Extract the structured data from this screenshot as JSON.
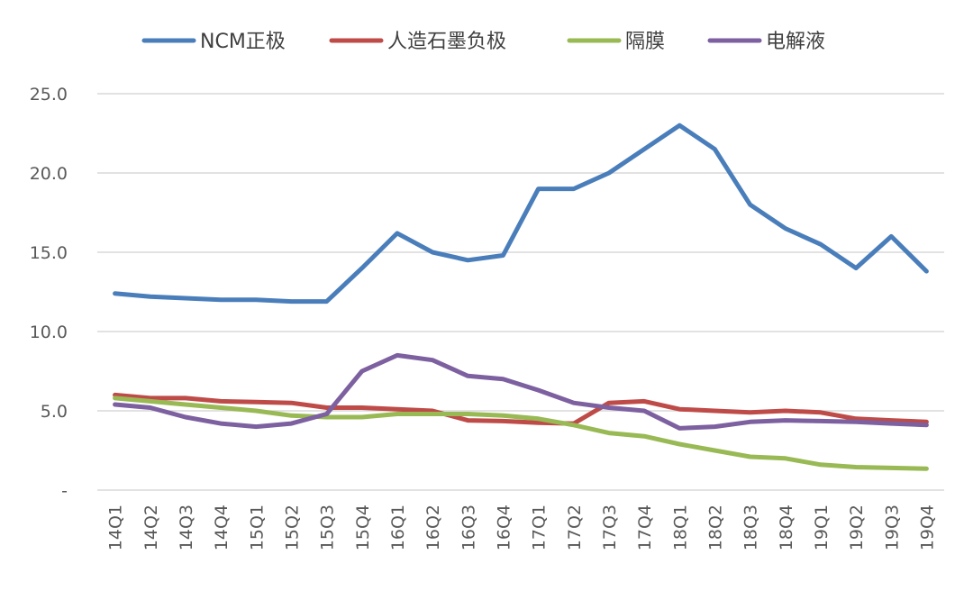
{
  "chart_data": {
    "type": "line",
    "title": "",
    "xlabel": "",
    "ylabel": "",
    "ylim": [
      0,
      25
    ],
    "yticks": [
      0,
      5,
      10,
      15,
      20,
      25
    ],
    "ytick_labels": [
      "-",
      "5.0",
      "10.0",
      "15.0",
      "20.0",
      "25.0"
    ],
    "grid": true,
    "legend_position": "top",
    "categories": [
      "14Q1",
      "14Q2",
      "14Q3",
      "14Q4",
      "15Q1",
      "15Q2",
      "15Q3",
      "15Q4",
      "16Q1",
      "16Q2",
      "16Q3",
      "16Q4",
      "17Q1",
      "17Q2",
      "17Q3",
      "17Q4",
      "18Q1",
      "18Q2",
      "18Q3",
      "18Q4",
      "19Q1",
      "19Q2",
      "19Q3",
      "19Q4"
    ],
    "series": [
      {
        "name": "NCM正极",
        "color": "#4a7ebb",
        "values": [
          12.4,
          12.2,
          12.1,
          12.0,
          12.0,
          11.9,
          11.9,
          14.0,
          16.2,
          15.0,
          14.5,
          14.8,
          19.0,
          19.0,
          20.0,
          21.5,
          23.0,
          21.5,
          18.0,
          16.5,
          15.5,
          14.0,
          16.0,
          13.8
        ]
      },
      {
        "name": "人造石墨负极",
        "color": "#be4b48",
        "values": [
          6.0,
          5.8,
          5.8,
          5.6,
          5.55,
          5.5,
          5.2,
          5.2,
          5.1,
          5.0,
          4.4,
          4.35,
          4.25,
          4.2,
          5.5,
          5.6,
          5.1,
          5.0,
          4.9,
          5.0,
          4.9,
          4.5,
          4.4,
          4.3
        ]
      },
      {
        "name": "隔膜",
        "color": "#98b954",
        "values": [
          5.8,
          5.6,
          5.4,
          5.2,
          5.0,
          4.7,
          4.6,
          4.6,
          4.8,
          4.8,
          4.8,
          4.7,
          4.5,
          4.1,
          3.6,
          3.4,
          2.9,
          2.5,
          2.1,
          2.0,
          1.6,
          1.45,
          1.4,
          1.35
        ]
      },
      {
        "name": "电解液",
        "color": "#7d60a0",
        "values": [
          5.4,
          5.2,
          4.6,
          4.2,
          4.0,
          4.2,
          4.8,
          7.5,
          8.5,
          8.2,
          7.2,
          7.0,
          6.3,
          5.5,
          5.2,
          5.0,
          3.9,
          4.0,
          4.3,
          4.4,
          4.35,
          4.3,
          4.2,
          4.1
        ]
      }
    ]
  }
}
